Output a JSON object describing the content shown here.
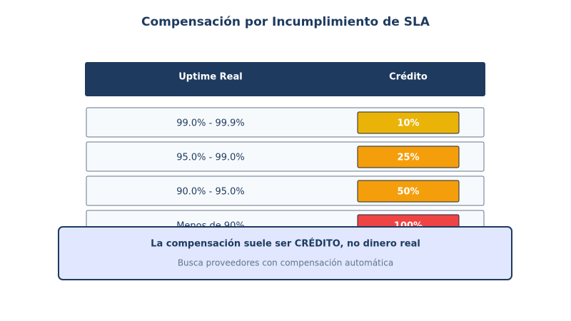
{
  "title": "Compensación por Incumplimiento de SLA",
  "table": {
    "header": [
      "Uptime Real",
      "Crédito"
    ],
    "rows": [
      {
        "range": "99.0% - 99.9%",
        "credit": "10%",
        "color": "#eab308"
      },
      {
        "range": "95.0% - 99.0%",
        "credit": "25%",
        "color": "#f59e0b"
      },
      {
        "range": "90.0% - 95.0%",
        "credit": "50%",
        "color": "#f59e0b"
      },
      {
        "range": "Menos de 90%",
        "credit": "100%",
        "color": "#ef4444"
      }
    ]
  },
  "callout": {
    "title": "La compensación suele ser CRÉDITO, no dinero real",
    "subtitle": "Busca proveedores con compensación automática"
  }
}
